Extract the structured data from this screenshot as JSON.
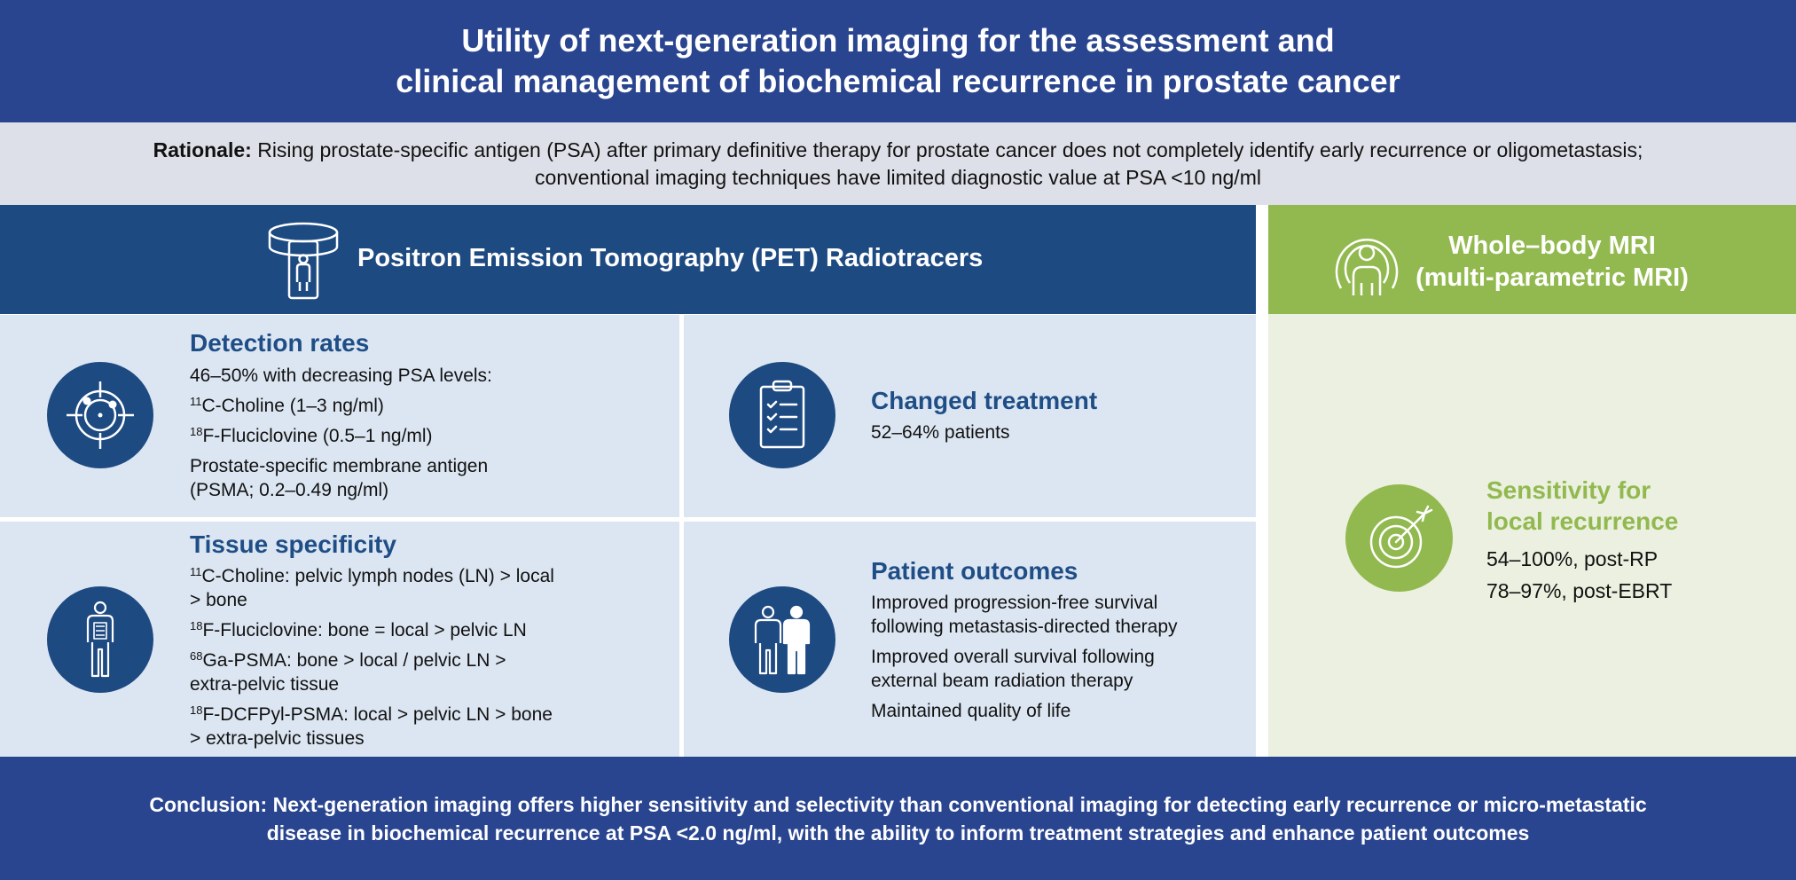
{
  "header": {
    "title_line1": "Utility of next-generation imaging for the assessment and",
    "title_line2": "clinical management of biochemical recurrence in prostate cancer"
  },
  "rationale": {
    "label": "Rationale:",
    "line1": "Rising prostate-specific antigen (PSA) after primary definitive therapy for prostate cancer does not completely identify early recurrence or oligometastasis;",
    "line2": "conventional imaging techniques have limited diagnostic value at PSA <10 ng/ml"
  },
  "pet": {
    "title": "Positron Emission Tomography (PET) Radiotracers",
    "detection": {
      "title": "Detection rates",
      "intro": "46–50% with decreasing PSA levels:",
      "items": [
        {
          "sup": "11",
          "text": "C-Choline (1–3 ng/ml)"
        },
        {
          "sup": "18",
          "text": "F-Fluciclovine (0.5–1 ng/ml)"
        }
      ],
      "psma_line1": "Prostate-specific membrane antigen",
      "psma_line2": "(PSMA; 0.2–0.49 ng/ml)"
    },
    "changed": {
      "title": "Changed treatment",
      "value": "52–64% patients"
    },
    "tissue": {
      "title": "Tissue specificity",
      "items": [
        {
          "sup": "11",
          "line1": "C-Choline: pelvic lymph nodes (LN) > local",
          "line2": "> bone"
        },
        {
          "sup": "18",
          "line1": "F-Fluciclovine: bone = local > pelvic LN",
          "line2": ""
        },
        {
          "sup": "68",
          "line1": "Ga-PSMA: bone > local / pelvic LN >",
          "line2": "extra-pelvic tissue"
        },
        {
          "sup": "18",
          "line1": "F-DCFPyl-PSMA: local > pelvic LN > bone",
          "line2": "> extra-pelvic tissues"
        }
      ]
    },
    "outcomes": {
      "title": "Patient outcomes",
      "items": [
        {
          "line1": "Improved progression-free survival",
          "line2": "following metastasis-directed therapy"
        },
        {
          "line1": "Improved overall survival following",
          "line2": "external beam radiation therapy"
        },
        {
          "line1": "Maintained quality of life",
          "line2": ""
        }
      ]
    }
  },
  "mri": {
    "title_line1": "Whole–body MRI",
    "title_line2": "(multi-parametric MRI)",
    "sensitivity": {
      "title_line1": "Sensitivity for",
      "title_line2": "local recurrence",
      "values": [
        "54–100%, post-RP",
        "78–97%, post-EBRT"
      ]
    }
  },
  "conclusion": {
    "line1": "Conclusion: Next-generation imaging offers higher sensitivity and selectivity than conventional imaging for detecting early recurrence or micro-metastatic",
    "line2": "disease in biochemical recurrence at PSA <2.0 ng/ml, with the ability to inform treatment strategies and enhance patient outcomes"
  },
  "colors": {
    "navy": "#2a4590",
    "pet_blue": "#1e4a82",
    "panel_blue": "#dce6f2",
    "rationale_gray": "#dde0e8",
    "mri_green": "#92b94f",
    "mri_panel": "#ebf0e0"
  },
  "icons": [
    "pet-scanner-icon",
    "mri-scanner-icon",
    "crosshair-target-icon",
    "clipboard-checklist-icon",
    "human-body-icon",
    "two-people-icon",
    "bullseye-arrow-icon"
  ]
}
